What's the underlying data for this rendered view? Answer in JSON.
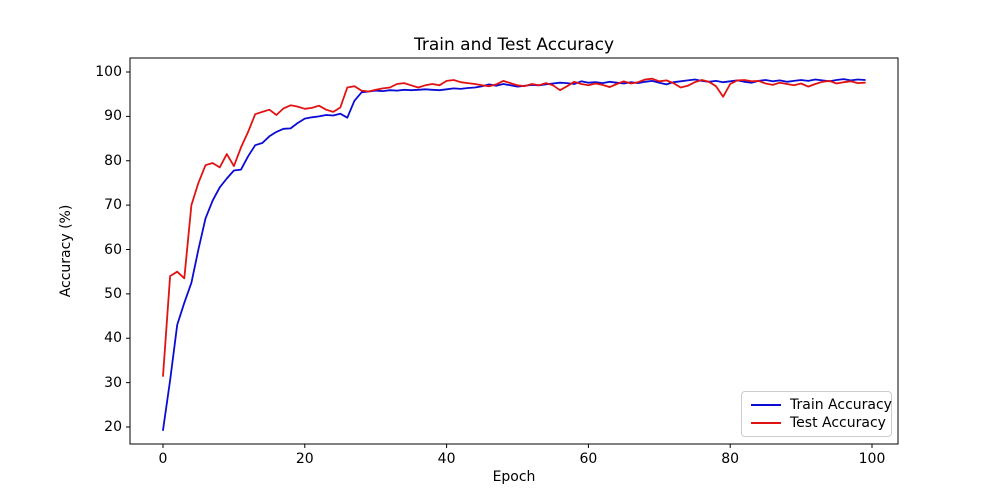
{
  "chart_data": {
    "type": "line",
    "title": "Train and Test Accuracy",
    "xlabel": "Epoch",
    "ylabel": "Accuracy (%)",
    "x_note": "epoch equals array index, 0 through 99",
    "xlim": [
      -5,
      104
    ],
    "ylim": [
      16,
      103
    ],
    "grid": false,
    "legend_position": "lower right",
    "xticks": [
      0,
      20,
      40,
      60,
      80,
      100
    ],
    "yticks": [
      20,
      30,
      40,
      50,
      60,
      70,
      80,
      90,
      100
    ],
    "series": [
      {
        "name": "Train Accuracy",
        "color": "#0b0bd6",
        "values": [
          19.3,
          30.5,
          43.0,
          48.0,
          52.5,
          60.0,
          67.0,
          71.0,
          74.0,
          76.0,
          77.8,
          78.0,
          81.0,
          83.5,
          84.0,
          85.5,
          86.5,
          87.2,
          87.3,
          88.5,
          89.5,
          89.8,
          90.0,
          90.3,
          90.2,
          90.6,
          89.7,
          93.5,
          95.4,
          95.6,
          95.8,
          95.7,
          95.9,
          95.8,
          96.0,
          95.9,
          96.0,
          96.1,
          96.0,
          95.9,
          96.1,
          96.3,
          96.2,
          96.4,
          96.5,
          96.8,
          97.2,
          96.9,
          97.3,
          97.0,
          96.7,
          96.9,
          97.1,
          97.0,
          97.2,
          97.4,
          97.6,
          97.5,
          97.3,
          97.9,
          97.6,
          97.7,
          97.5,
          97.8,
          97.6,
          97.4,
          97.7,
          97.5,
          97.8,
          98.0,
          97.6,
          97.2,
          97.7,
          97.9,
          98.1,
          98.3,
          98.0,
          97.8,
          98.0,
          97.7,
          97.9,
          98.1,
          97.8,
          97.6,
          98.0,
          98.2,
          97.9,
          98.1,
          97.8,
          98.0,
          98.2,
          98.0,
          98.3,
          98.1,
          97.9,
          98.2,
          98.4,
          98.1,
          98.3,
          98.2
        ]
      },
      {
        "name": "Test Accuracy",
        "color": "#e31212",
        "values": [
          31.5,
          54.0,
          55.0,
          53.5,
          70.0,
          75.0,
          79.0,
          79.5,
          78.5,
          81.5,
          78.8,
          83.0,
          86.5,
          90.5,
          91.0,
          91.5,
          90.3,
          91.8,
          92.5,
          92.2,
          91.7,
          91.9,
          92.4,
          91.5,
          91.0,
          92.0,
          96.5,
          96.8,
          95.8,
          95.6,
          96.0,
          96.3,
          96.5,
          97.3,
          97.5,
          97.0,
          96.5,
          97.0,
          97.3,
          97.0,
          98.0,
          98.2,
          97.7,
          97.5,
          97.3,
          97.0,
          96.8,
          97.2,
          98.0,
          97.5,
          97.0,
          96.8,
          97.3,
          97.0,
          97.5,
          97.0,
          95.9,
          96.8,
          97.8,
          97.3,
          97.0,
          97.4,
          97.1,
          96.6,
          97.3,
          97.9,
          97.4,
          97.7,
          98.3,
          98.5,
          97.9,
          98.1,
          97.5,
          96.5,
          96.9,
          97.7,
          98.2,
          97.8,
          96.8,
          94.4,
          97.3,
          98.1,
          98.2,
          97.9,
          98.0,
          97.4,
          97.1,
          97.6,
          97.3,
          97.0,
          97.4,
          96.7,
          97.3,
          97.8,
          98.0,
          97.4,
          97.7,
          97.9,
          97.5,
          97.6
        ]
      }
    ]
  }
}
